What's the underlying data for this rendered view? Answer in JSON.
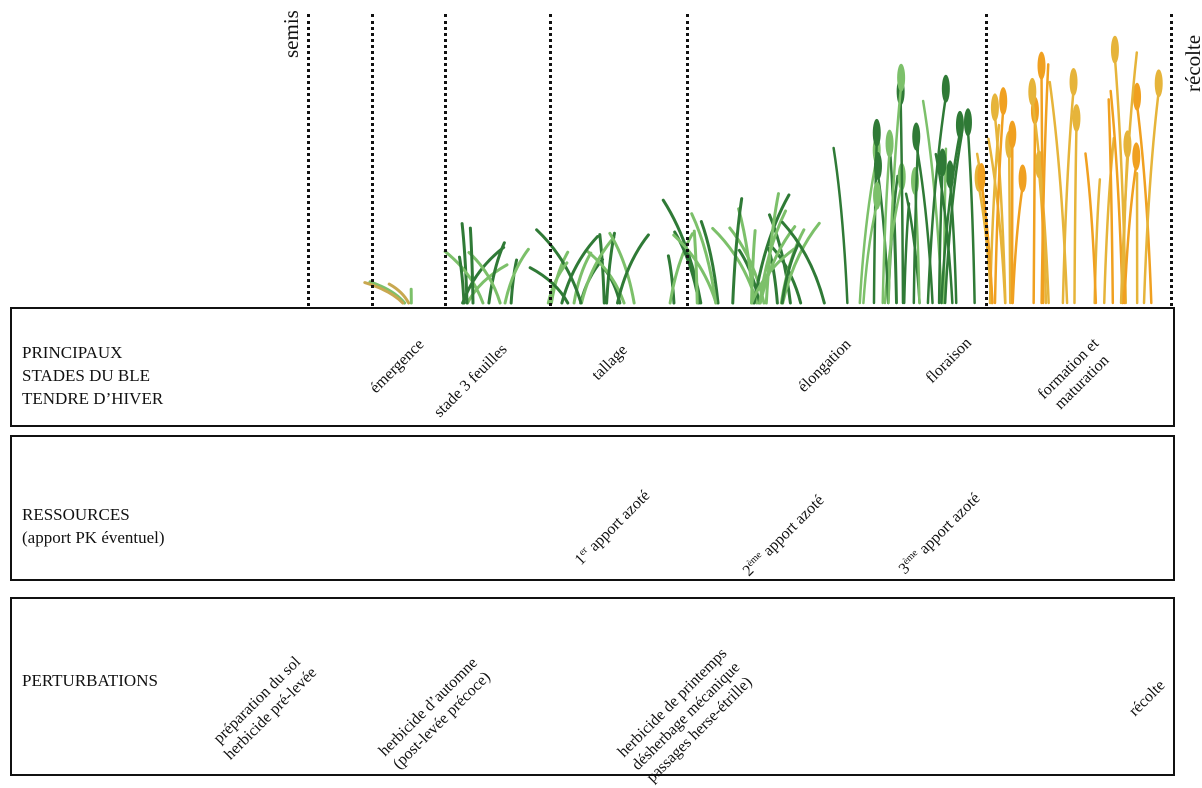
{
  "timeline": {
    "start_label": "semis",
    "end_label": "récolte"
  },
  "stages": {
    "title_lines": [
      "PRINCIPAUX",
      "STADES DU BLE",
      "TENDRE D’HIVER"
    ],
    "items": [
      "émergence",
      "stade 3 feuilles",
      "tallage",
      "élongation",
      "floraison"
    ],
    "last_item_lines": [
      "formation et",
      "maturation"
    ]
  },
  "resources": {
    "title_lines": [
      "RESSOURCES",
      "(apport PK éventuel)"
    ],
    "items": [
      {
        "num": "1",
        "sup": "er",
        "text": " apport azoté"
      },
      {
        "num": "2",
        "sup": "ème",
        "text": " apport azoté"
      },
      {
        "num": "3",
        "sup": "ème",
        "text": " apport azoté"
      }
    ]
  },
  "perturbations": {
    "title": "PERTURBATIONS",
    "soil_lines": [
      "préparation du sol",
      "herbicide pré-levée"
    ],
    "autumn_lines": [
      "herbicide d’automne",
      "(post-levée précoce)"
    ],
    "spring_lines": [
      "herbicide de printemps",
      "désherbage mécanique",
      "passages herse-étrille)"
    ],
    "harvest": "récolte"
  },
  "colors": {
    "line": "#111111",
    "leaf_dark": "#2f7a36",
    "leaf_light": "#7cc06a",
    "leaf_yellow": "#e6b43a",
    "leaf_orange": "#f0a020"
  }
}
